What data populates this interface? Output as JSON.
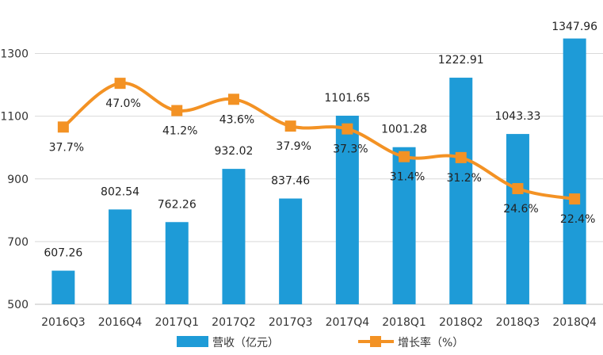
{
  "chart_data": {
    "type": "bar",
    "title": "",
    "xlabel": "",
    "ylabel": "",
    "categories": [
      "2016Q3",
      "2016Q4",
      "2017Q1",
      "2017Q2",
      "2017Q3",
      "2017Q4",
      "2018Q1",
      "2018Q2",
      "2018Q3",
      "2018Q4"
    ],
    "ylim": [
      500,
      1400
    ],
    "yticks": [
      500,
      700,
      900,
      1100,
      1300
    ],
    "grid": true,
    "legend_position": "bottom",
    "series": [
      {
        "name": "营收（亿元）",
        "type": "bar",
        "color": "#1E9BD7",
        "values": [
          607.26,
          802.54,
          762.26,
          932.02,
          837.46,
          1101.65,
          1001.28,
          1222.91,
          1043.33,
          1347.96
        ],
        "labels": [
          "607.26",
          "802.54",
          "762.26",
          "932.02",
          "837.46",
          "1101.65",
          "1001.28",
          "1222.91",
          "1043.33",
          "1347.96"
        ]
      },
      {
        "name": "增长率（%）",
        "type": "line",
        "color": "#F39224",
        "secondary_axis_range": [
          0,
          60
        ],
        "values": [
          37.7,
          47.0,
          41.2,
          43.6,
          37.9,
          37.3,
          31.4,
          31.2,
          24.6,
          22.4
        ],
        "labels": [
          "37.7%",
          "47.0%",
          "41.2%",
          "43.6%",
          "37.9%",
          "37.3%",
          "31.4%",
          "31.2%",
          "24.6%",
          "22.4%"
        ]
      }
    ]
  }
}
